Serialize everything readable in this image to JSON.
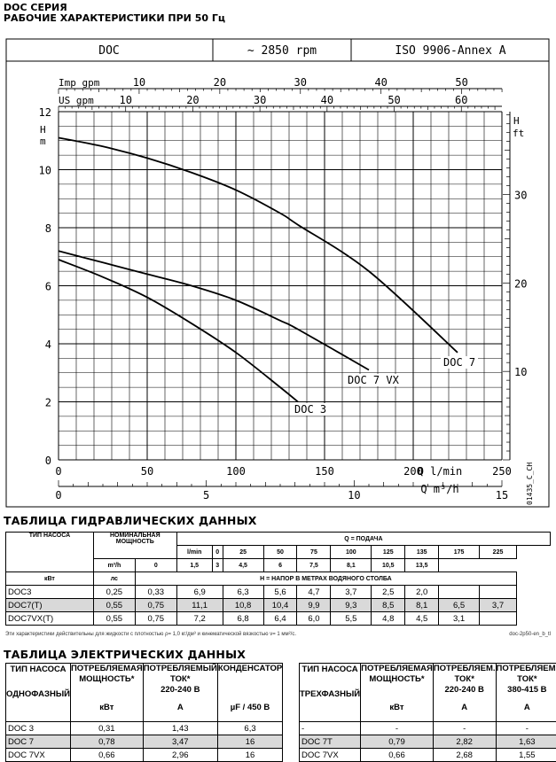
{
  "header": {
    "line1": "DOC СЕРИЯ",
    "line2": "РАБОЧИЕ ХАРАКТЕРИСТИКИ ПРИ 50 Гц"
  },
  "chart_header": {
    "model": "DOC",
    "speed": "~ 2850 rpm",
    "standard": "ISO 9906-Annex A"
  },
  "chart_data": {
    "type": "line",
    "title": "",
    "xlabel": "Q l/min",
    "xlabel_secondary": "Q m³/h",
    "ylabel": "H m",
    "ylabel_right": "H ft",
    "top_axis_imp": "Imp gpm",
    "top_axis_us": "US gpm",
    "xlim": [
      0,
      250
    ],
    "ylim": [
      0,
      12
    ],
    "x_ticks": [
      0,
      50,
      100,
      150,
      200,
      250
    ],
    "y_ticks": [
      0,
      2,
      4,
      6,
      8,
      10,
      12
    ],
    "ft_ticks": [
      10,
      20,
      30
    ],
    "m3h_ticks": [
      0,
      5,
      10,
      15
    ],
    "imp_ticks": [
      10,
      20,
      30,
      40,
      50
    ],
    "us_ticks": [
      10,
      20,
      30,
      40,
      50,
      60
    ],
    "grid": true,
    "code": "01435_C_CH",
    "series": [
      {
        "name": "DOC 3",
        "x": [
          0,
          25,
          50,
          75,
          100,
          125,
          135
        ],
        "y": [
          6.9,
          6.3,
          5.6,
          4.7,
          3.7,
          2.5,
          2.0
        ]
      },
      {
        "name": "DOC 7 VX",
        "x": [
          0,
          25,
          50,
          75,
          100,
          125,
          135,
          175
        ],
        "y": [
          7.2,
          6.8,
          6.4,
          6.0,
          5.5,
          4.8,
          4.5,
          3.1
        ]
      },
      {
        "name": "DOC 7",
        "x": [
          0,
          25,
          50,
          75,
          100,
          125,
          135,
          175,
          225
        ],
        "y": [
          11.1,
          10.8,
          10.4,
          9.9,
          9.3,
          8.5,
          8.1,
          6.5,
          3.7
        ]
      }
    ]
  },
  "hydraulic": {
    "title": "ТАБЛИЦА ГИДРАВЛИЧЕСКИХ ДАННЫХ",
    "col_type": "ТИП НАСОСА",
    "col_power": "НОМИНАЛЬНАЯ МОЩНОСТЬ",
    "col_q": "Q = ПОДАЧА",
    "unit_lmin": "l/min",
    "unit_m3h": "m³/h",
    "unit_kw": "кВт",
    "unit_hp": "лс",
    "h_note": "H = НАПОР В МЕТРАХ ВОДЯНОГО СТОЛБА",
    "lmin": [
      "0",
      "25",
      "50",
      "75",
      "100",
      "125",
      "135",
      "175",
      "225"
    ],
    "m3h": [
      "0",
      "1,5",
      "3",
      "4,5",
      "6",
      "7,5",
      "8,1",
      "10,5",
      "13,5"
    ],
    "rows": [
      {
        "name": "DOC3",
        "kw": "0,25",
        "hp": "0,33",
        "h": [
          "6,9",
          "6,3",
          "5,6",
          "4,7",
          "3,7",
          "2,5",
          "2,0",
          "",
          ""
        ]
      },
      {
        "name": "DOC7(T)",
        "kw": "0,55",
        "hp": "0,75",
        "h": [
          "11,1",
          "10,8",
          "10,4",
          "9,9",
          "9,3",
          "8,5",
          "8,1",
          "6,5",
          "3,7"
        ]
      },
      {
        "name": "DOC7VX(T)",
        "kw": "0,55",
        "hp": "0,75",
        "h": [
          "7,2",
          "6,8",
          "6,4",
          "6,0",
          "5,5",
          "4,8",
          "4,5",
          "3,1",
          ""
        ]
      }
    ],
    "footnote": "Эти характеристики действительны для жидкости с плотностью ρ= 1,0 кг/дм³ и кинематической вязкостью ν= 1 мм²/с.",
    "doc_code": "doc-2p50-en_b_tl"
  },
  "electric": {
    "title": "ТАБЛИЦА ЭЛЕКТРИЧЕСКИХ ДАННЫХ",
    "single": {
      "h_type": "ТИП НАСОСА",
      "h_phase": "ОДНОФАЗНЫЙ",
      "h_power": "ПОТРЕБЛЯЕМАЯ МОЩНОСТЬ*",
      "h_current": "ПОТРЕБЛЯЕМЫЙ ТОК*",
      "h_voltage": "220-240 В",
      "h_cap": "КОНДЕНСАТОР",
      "u_kw": "кВт",
      "u_a": "А",
      "u_cap": "µF / 450 В",
      "rows": [
        {
          "name": "DOC 3",
          "p": "0,31",
          "i": "1,43",
          "c": "6,3"
        },
        {
          "name": "DOC 7",
          "p": "0,78",
          "i": "3,47",
          "c": "16"
        },
        {
          "name": "DOC 7VX",
          "p": "0,66",
          "i": "2,96",
          "c": "16"
        }
      ]
    },
    "three": {
      "h_type": "ТИП НАСОСА",
      "h_phase": "ТРЕХФАЗНЫЙ",
      "h_power": "ПОТРЕБЛЯЕМАЯ МОЩНОСТЬ*",
      "h_current1": "ПОТРЕБЛЯЕМ. ТОК*",
      "h_v1": "220-240 В",
      "h_current2": "ПОТРЕБЛЯЕМ. ТОК*",
      "h_v2": "380-415 В",
      "u_kw": "кВт",
      "u_a": "А",
      "rows": [
        {
          "name": "-",
          "p": "-",
          "i1": "-",
          "i2": "-"
        },
        {
          "name": "DOC 7T",
          "p": "0,79",
          "i1": "2,82",
          "i2": "1,63"
        },
        {
          "name": "DOC 7VX",
          "p": "0,66",
          "i1": "2,68",
          "i2": "1,55"
        }
      ]
    }
  }
}
